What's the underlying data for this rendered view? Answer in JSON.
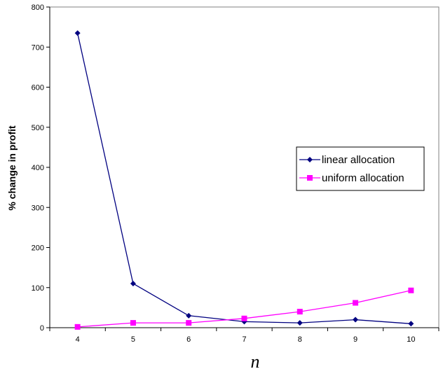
{
  "chart_data": {
    "type": "line",
    "xlabel": "n",
    "ylabel": "% change in profit",
    "x": [
      4,
      5,
      6,
      7,
      8,
      9,
      10
    ],
    "xlim": [
      3.5,
      10.5
    ],
    "ylim": [
      0,
      800
    ],
    "yticks": [
      0,
      100,
      200,
      300,
      400,
      500,
      600,
      700,
      800
    ],
    "xticks": [
      4,
      5,
      6,
      7,
      8,
      9,
      10
    ],
    "grid": false,
    "legend_position": "right-middle",
    "series": [
      {
        "name": "linear allocation",
        "values": [
          735,
          110,
          30,
          15,
          12,
          20,
          10
        ],
        "color": "#000080",
        "marker": "diamond"
      },
      {
        "name": "uniform allocation",
        "values": [
          2,
          12,
          12,
          23,
          40,
          62,
          93
        ],
        "color": "#FF00FF",
        "marker": "square"
      }
    ]
  }
}
